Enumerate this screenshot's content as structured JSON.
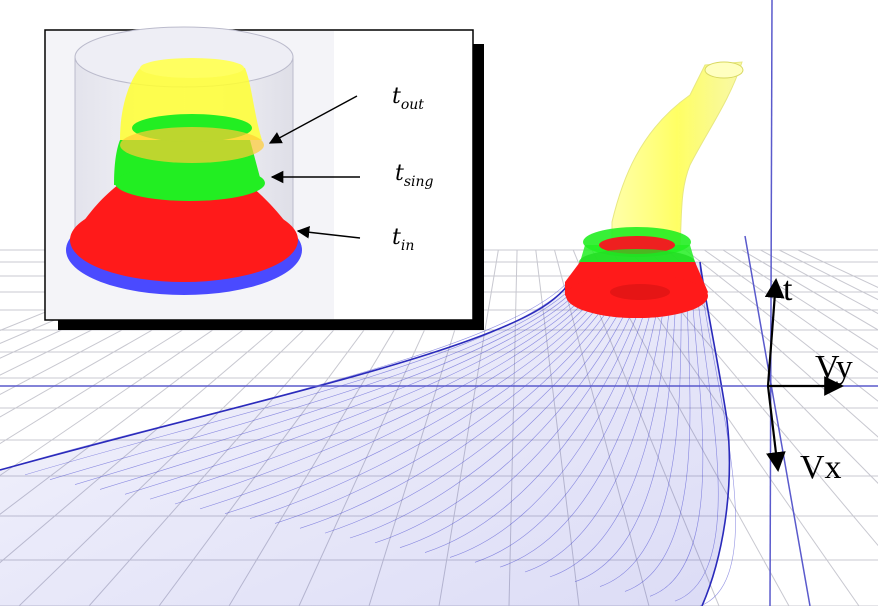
{
  "axes": {
    "t": "t",
    "vy": "Vy",
    "vx": "Vx"
  },
  "inset": {
    "labels": {
      "out": {
        "base": "t",
        "sub": "out"
      },
      "sing": {
        "base": "t",
        "sub": "sing"
      },
      "in": {
        "base": "t",
        "sub": "in"
      }
    }
  },
  "colors": {
    "background": "#ffffff",
    "grid": "#c8c8d0",
    "surface_lines": "#3a3acc",
    "axis_line": "#5a5acc",
    "red_band": "#ff1a1a",
    "green_band": "#22ee22",
    "yellow_band": "#ffff40",
    "blue_base": "#4a4aff"
  }
}
